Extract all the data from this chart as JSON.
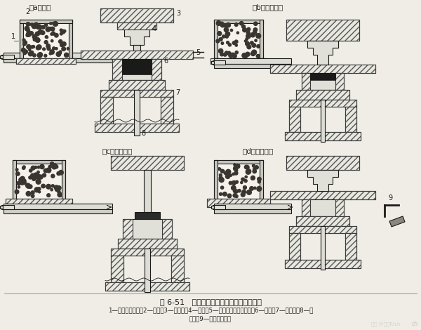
{
  "title_figure": "图 6-51   热固性塑料模压成型工艺过程示意",
  "caption_line1": "1—自动加料装置；2—料斗；3—上模板；4—阳模；5—压缩空气上、下吹管；6—阴模；7—下压板；8—顶",
  "caption_line2": "出杆；9—成品脱模装置",
  "label_a": "（a）加料",
  "label_b": "（b）压制成型",
  "label_c": "（c）顶出脱模",
  "label_d": "（d）阴模复位",
  "bg_color": "#f0ede6",
  "fg_color": "#1a1a1a",
  "hatch_color": "#555555",
  "fig_width": 6.0,
  "fig_height": 4.7,
  "dpi": 100
}
